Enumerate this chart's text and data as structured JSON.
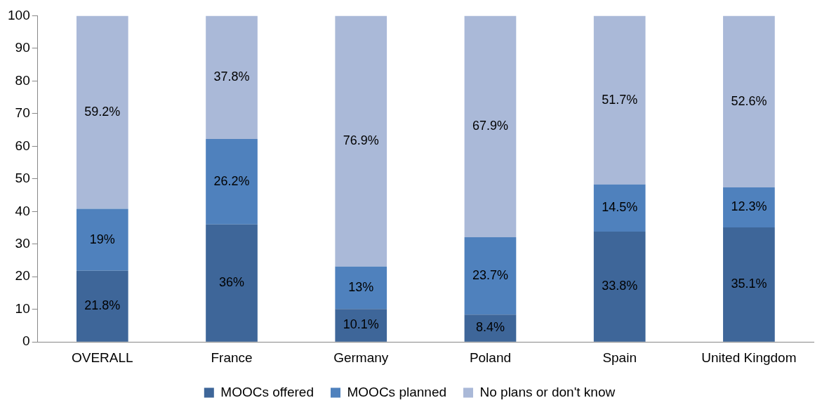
{
  "chart_data": {
    "type": "bar",
    "stacked": true,
    "categories": [
      "OVERALL",
      "France",
      "Germany",
      "Poland",
      "Spain",
      "United Kingdom"
    ],
    "series": [
      {
        "name": "MOOCs offered",
        "color": "#3e6699",
        "values": [
          21.8,
          36,
          10.1,
          8.4,
          33.8,
          35.1
        ],
        "value_labels": [
          "21.8%",
          "36%",
          "10.1%",
          "8.4%",
          "33.8%",
          "35.1%"
        ]
      },
      {
        "name": "MOOCs planned",
        "color": "#4f81bd",
        "values": [
          19,
          26.2,
          13,
          23.7,
          14.5,
          12.3
        ],
        "value_labels": [
          "19%",
          "26.2%",
          "13%",
          "23.7%",
          "14.5%",
          "12.3%"
        ]
      },
      {
        "name": "No plans or don't know",
        "color": "#aab9d8",
        "values": [
          59.2,
          37.8,
          76.9,
          67.9,
          51.7,
          52.6
        ],
        "value_labels": [
          "59.2%",
          "37.8%",
          "76.9%",
          "67.9%",
          "51.7%",
          "52.6%"
        ]
      }
    ],
    "ylim": [
      0,
      100
    ],
    "yticks": [
      0,
      10,
      20,
      30,
      40,
      50,
      60,
      70,
      80,
      90,
      100
    ],
    "grid": false,
    "legend": "bottom"
  }
}
